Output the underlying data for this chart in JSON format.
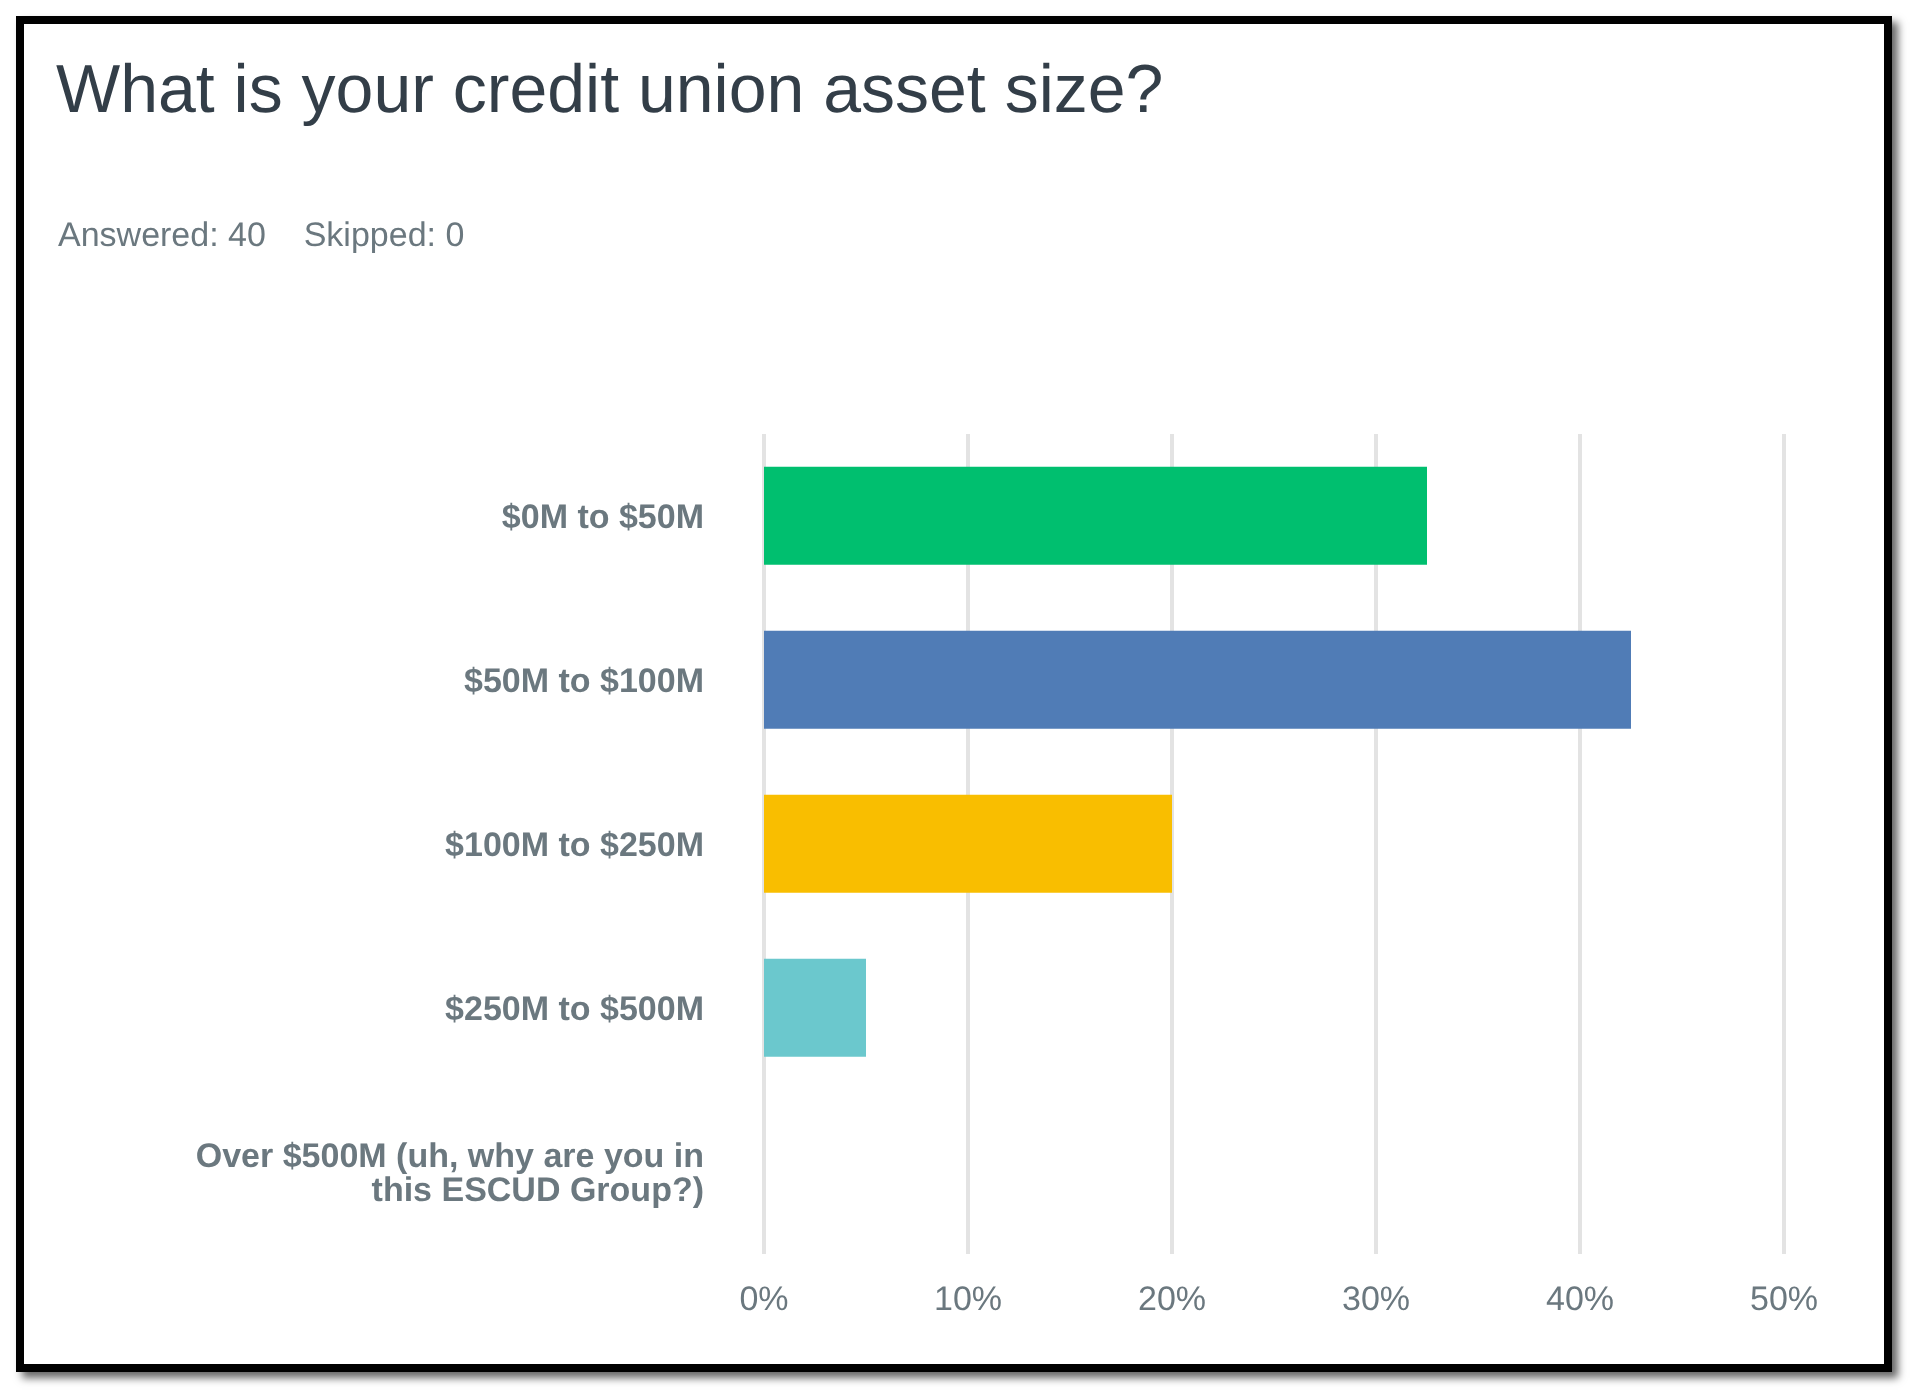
{
  "chart_data": {
    "type": "bar",
    "orientation": "horizontal",
    "title": "What is your credit union asset size?",
    "subtitle": "Answered: 40    Skipped: 0",
    "categories": [
      "$0M to $50M",
      "$50M to $100M",
      "$100M to $250M",
      "$250M to $500M",
      "Over $500M (uh, why are you in this ESCUD Group?)"
    ],
    "values": [
      32.5,
      42.5,
      20,
      5,
      0
    ],
    "colors": [
      "#00bf6f",
      "#507cb6",
      "#f9be00",
      "#6bc8cd",
      "#6bc8cd"
    ],
    "xlim": [
      0,
      50
    ],
    "xticks": [
      {
        "value": 0,
        "label": "0%"
      },
      {
        "value": 10,
        "label": "10%"
      },
      {
        "value": 20,
        "label": "20%"
      },
      {
        "value": 30,
        "label": "30%"
      },
      {
        "value": 40,
        "label": "40%"
      },
      {
        "value": 50,
        "label": "50%"
      }
    ],
    "grid": "x",
    "legend": false
  }
}
